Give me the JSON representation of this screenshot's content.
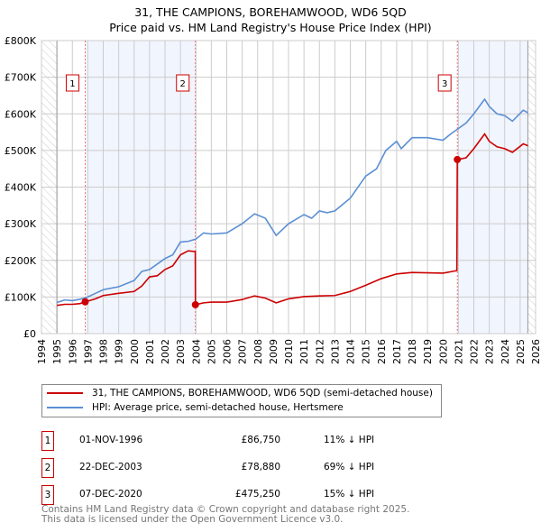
{
  "chart_data": {
    "type": "line",
    "title": "31, THE CAMPIONS, BOREHAMWOOD, WD6 5QD",
    "subtitle": "Price paid vs. HM Land Registry's House Price Index (HPI)",
    "xlim": [
      1994,
      2026
    ],
    "ylim": [
      0,
      800000
    ],
    "x_ticks": [
      "1994",
      "1995",
      "1996",
      "1997",
      "1998",
      "1999",
      "2000",
      "2001",
      "2002",
      "2003",
      "2004",
      "2005",
      "2006",
      "2007",
      "2008",
      "2009",
      "2010",
      "2011",
      "2012",
      "2013",
      "2014",
      "2015",
      "2016",
      "2017",
      "2018",
      "2019",
      "2020",
      "2021",
      "2022",
      "2023",
      "2024",
      "2025",
      "2026"
    ],
    "y_ticks": [
      {
        "v": 0,
        "label": "£0"
      },
      {
        "v": 100000,
        "label": "£100K"
      },
      {
        "v": 200000,
        "label": "£200K"
      },
      {
        "v": 300000,
        "label": "£300K"
      },
      {
        "v": 400000,
        "label": "£400K"
      },
      {
        "v": 500000,
        "label": "£500K"
      },
      {
        "v": 600000,
        "label": "£600K"
      },
      {
        "v": 700000,
        "label": "£700K"
      },
      {
        "v": 800000,
        "label": "£800K"
      }
    ],
    "grid": true,
    "series": [
      {
        "name": "31, THE CAMPIONS, BOREHAMWOOD, WD6 5QD (semi-detached house)",
        "color": "#cc0000",
        "x": [
          1995,
          1995.5,
          1996,
          1996.5,
          1996.83,
          1997.5,
          1998,
          1999,
          2000,
          2000.5,
          2001,
          2001.5,
          2002,
          2002.5,
          2003,
          2003.5,
          2003.96,
          2003.97,
          2004.5,
          2005,
          2006,
          2007,
          2007.8,
          2008.5,
          2009.2,
          2010,
          2011,
          2012,
          2013,
          2014,
          2015,
          2016,
          2017,
          2018,
          2019,
          2020,
          2020.9,
          2020.93,
          2021.5,
          2022,
          2022.7,
          2023,
          2023.5,
          2024,
          2024.5,
          2025.2,
          2025.5
        ],
        "y": [
          77000,
          80000,
          80000,
          82000,
          86750,
          95000,
          104000,
          110000,
          115000,
          130000,
          155000,
          158000,
          175000,
          185000,
          215000,
          226000,
          224000,
          78880,
          84000,
          86000,
          86000,
          93000,
          103000,
          97000,
          84000,
          95000,
          101000,
          103000,
          104000,
          115000,
          132000,
          150000,
          163000,
          167000,
          166000,
          165000,
          172000,
          475250,
          480000,
          505000,
          545000,
          525000,
          510000,
          505000,
          495000,
          518000,
          513000
        ]
      },
      {
        "name": "HPI: Average price, semi-detached house, Hertsmere",
        "color": "#5b8fd4",
        "x": [
          1995,
          1995.5,
          1996,
          1996.5,
          1996.83,
          1997.5,
          1998,
          1999,
          2000,
          2000.5,
          2001,
          2001.5,
          2002,
          2002.5,
          2003,
          2003.5,
          2004,
          2004.5,
          2005,
          2006,
          2007,
          2007.8,
          2008.5,
          2009.2,
          2010,
          2011,
          2011.5,
          2012,
          2012.5,
          2013,
          2014,
          2015,
          2015.7,
          2016.3,
          2017,
          2017.3,
          2018,
          2019,
          2020,
          2020.5,
          2021,
          2021.5,
          2022,
          2022.7,
          2023,
          2023.5,
          2024,
          2024.5,
          2025.2,
          2025.5
        ],
        "y": [
          85000,
          92000,
          90000,
          94000,
          97000,
          110000,
          120000,
          128000,
          145000,
          170000,
          175000,
          190000,
          205000,
          215000,
          250000,
          252000,
          258000,
          275000,
          272000,
          275000,
          300000,
          327000,
          315000,
          268000,
          300000,
          325000,
          315000,
          335000,
          330000,
          335000,
          370000,
          430000,
          450000,
          500000,
          525000,
          505000,
          535000,
          535000,
          528000,
          545000,
          560000,
          575000,
          600000,
          640000,
          620000,
          600000,
          595000,
          580000,
          610000,
          603000
        ]
      }
    ],
    "sales": [
      {
        "label": "1",
        "x": 1996.83,
        "y": 86750
      },
      {
        "label": "2",
        "x": 2003.97,
        "y": 78880
      },
      {
        "label": "3",
        "x": 2020.93,
        "y": 475250
      }
    ]
  },
  "legend": {
    "red": "31, THE CAMPIONS, BOREHAMWOOD, WD6 5QD (semi-detached house)",
    "blue": "HPI: Average price, semi-detached house, Hertsmere"
  },
  "transactions": [
    {
      "num": "1",
      "date": "01-NOV-1996",
      "price": "£86,750",
      "hpi": "11% ↓ HPI"
    },
    {
      "num": "2",
      "date": "22-DEC-2003",
      "price": "£78,880",
      "hpi": "69% ↓ HPI"
    },
    {
      "num": "3",
      "date": "07-DEC-2020",
      "price": "£475,250",
      "hpi": "15% ↓ HPI"
    }
  ],
  "footer": {
    "line1": "Contains HM Land Registry data © Crown copyright and database right 2025.",
    "line2": "This data is licensed under the Open Government Licence v3.0."
  }
}
